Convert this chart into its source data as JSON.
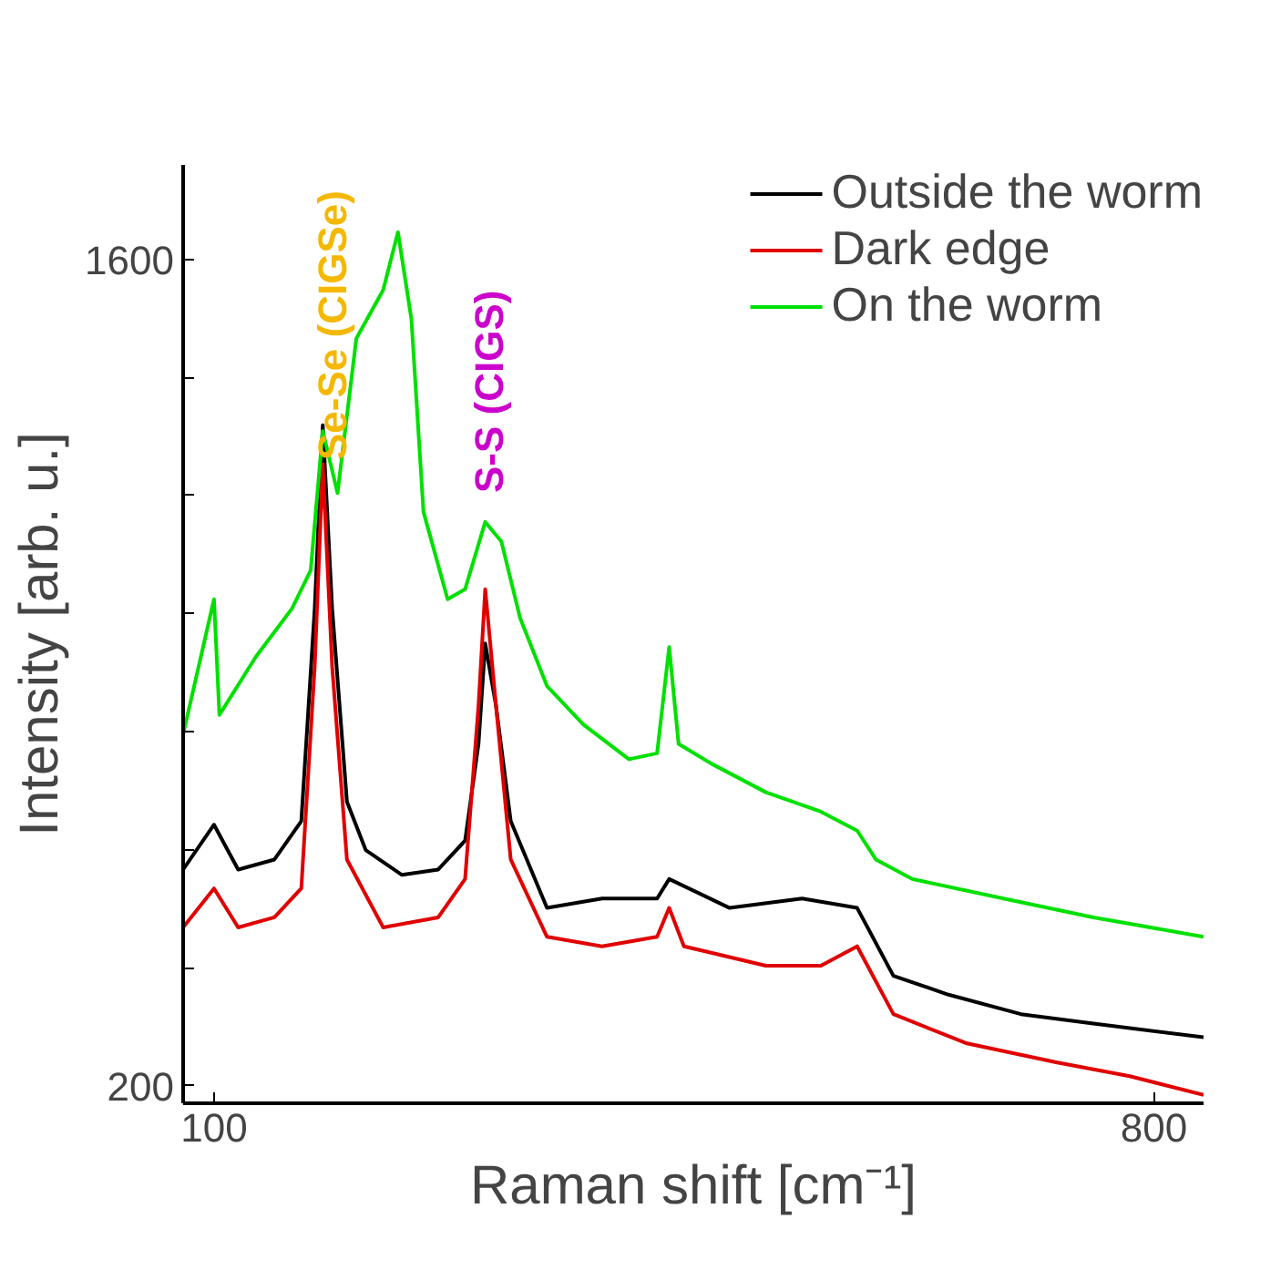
{
  "chart_data": {
    "type": "line",
    "xlabel": "Raman shift [cm⁻¹]",
    "ylabel": "Intensity [arb. u.]",
    "xlim": [
      77,
      837
    ],
    "ylim": [
      170,
      1760
    ],
    "xticks": [
      100,
      800
    ],
    "yticks": [
      200,
      {
        "value": 400,
        "label": null
      },
      {
        "value": 600,
        "label": null
      },
      {
        "value": 800,
        "label": null
      },
      {
        "value": 1000,
        "label": null
      },
      {
        "value": 1200,
        "label": null
      },
      {
        "value": 1400,
        "label": null
      },
      1600
    ],
    "grid": false,
    "legend": "top right",
    "line_style": "solid",
    "marker": "none",
    "series": [
      {
        "name": "Outside the worm",
        "color": "#000000",
        "x": [
          77,
          100,
          118,
          145,
          165,
          175,
          181,
          188,
          199,
          213,
          240,
          267,
          287,
          297,
          302,
          310,
          321,
          348,
          389,
          430,
          439,
          484,
          538,
          579,
          606,
          647,
          701,
          755,
          837
        ],
        "values": [
          566,
          642,
          566,
          583,
          648,
          1008,
          1319,
          1008,
          681,
          599,
          557,
          566,
          615,
          779,
          949,
          844,
          648,
          501,
          517,
          517,
          550,
          501,
          517,
          501,
          386,
          354,
          321,
          305,
          282
        ]
      },
      {
        "name": "Dark edge",
        "color": "#e00000",
        "x": [
          77,
          100,
          118,
          145,
          165,
          175,
          181,
          188,
          199,
          226,
          267,
          287,
          297,
          302,
          310,
          321,
          348,
          389,
          430,
          439,
          450,
          511,
          552,
          579,
          606,
          660,
          728,
          782,
          837
        ],
        "values": [
          468,
          534,
          468,
          485,
          534,
          910,
          1253,
          910,
          583,
          468,
          485,
          550,
          844,
          1041,
          844,
          583,
          452,
          436,
          452,
          501,
          436,
          403,
          403,
          436,
          321,
          272,
          239,
          216,
          184
        ]
      },
      {
        "name": "On the worm",
        "color": "#00e000",
        "x": [
          77,
          100,
          104,
          131,
          158,
          172,
          181,
          192,
          206,
          226,
          237,
          247,
          256,
          274,
          287,
          302,
          314,
          328,
          348,
          375,
          409,
          430,
          439,
          446,
          470,
          511,
          552,
          579,
          593,
          620,
          688,
          755,
          837
        ],
        "values": [
          795,
          1024,
          828,
          926,
          1008,
          1073,
          1309,
          1204,
          1466,
          1548,
          1646,
          1499,
          1172,
          1024,
          1041,
          1155,
          1122,
          992,
          877,
          812,
          753,
          763,
          943,
          779,
          746,
          697,
          664,
          632,
          583,
          550,
          517,
          485,
          452
        ]
      }
    ],
    "annotations": [
      "Se-Se (CIGSe)",
      "S-S (CIGS)"
    ]
  }
}
